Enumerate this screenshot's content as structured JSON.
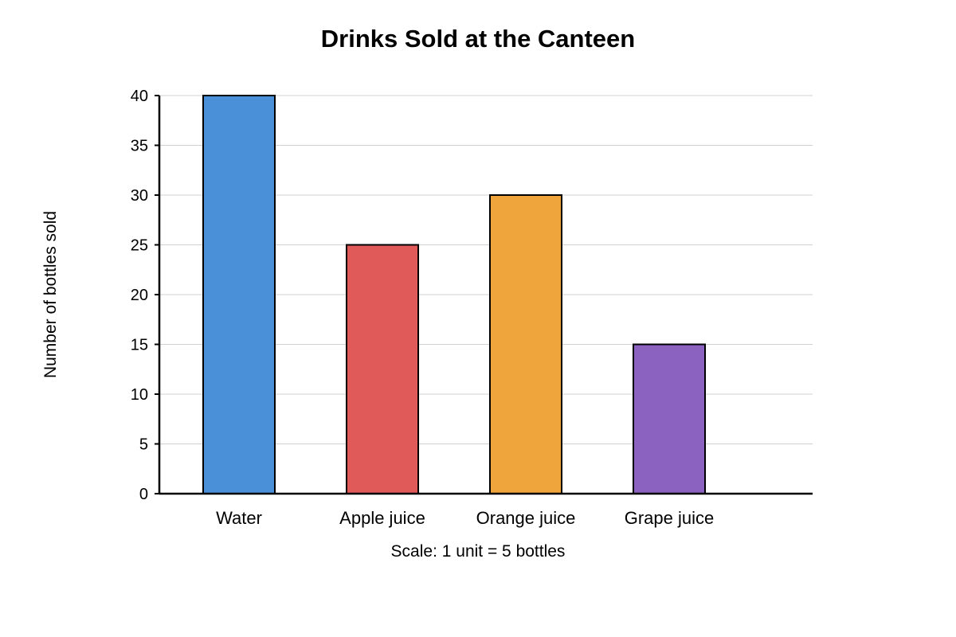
{
  "chart_data": {
    "type": "bar",
    "title": "Drinks Sold at the Canteen",
    "ylabel": "Number of bottles sold",
    "xlabel": "Scale: 1 unit = 5 bottles",
    "categories": [
      "Water",
      "Apple juice",
      "Orange juice",
      "Grape juice"
    ],
    "values": [
      40,
      25,
      30,
      15
    ],
    "colors": [
      "#4a90d9",
      "#e05a5a",
      "#f0a43c",
      "#8b62c0"
    ],
    "ylim": [
      0,
      40
    ],
    "yticks": [
      0,
      5,
      10,
      15,
      20,
      25,
      30,
      35,
      40
    ],
    "grid": true,
    "legend": "none"
  }
}
